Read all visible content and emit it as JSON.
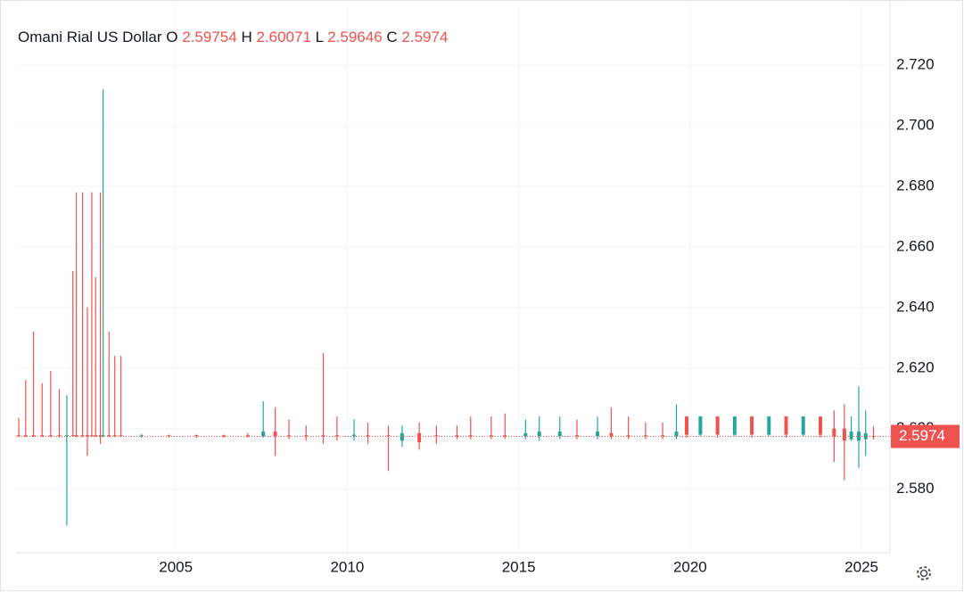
{
  "chart_data": {
    "type": "candlestick",
    "title": "Omani Rial US Dollar",
    "ohlc_labels": [
      "O",
      "H",
      "L",
      "C"
    ],
    "ohlc_values": [
      2.59754,
      2.60071,
      2.59646,
      2.5974
    ],
    "up_color": "#26a69a",
    "down_color": "#ef5350",
    "xlim": [
      2000.34,
      2025.83
    ],
    "xticks": [
      2005,
      2010,
      2015,
      2020,
      2025
    ],
    "ylim": [
      2.559,
      2.7415
    ],
    "yticks": [
      {
        "value": 2.58,
        "label": "2.580"
      },
      {
        "value": 2.6,
        "label": "2.600"
      },
      {
        "value": 2.62,
        "label": "2.620"
      },
      {
        "value": 2.64,
        "label": "2.640"
      },
      {
        "value": 2.66,
        "label": "2.660"
      },
      {
        "value": 2.68,
        "label": "2.680"
      },
      {
        "value": 2.7,
        "label": "2.700"
      },
      {
        "value": 2.72,
        "label": "2.720"
      }
    ],
    "grid": true,
    "x": [
      2000.42,
      2000.62,
      2000.85,
      2001.1,
      2001.35,
      2001.6,
      2001.82,
      2002.0,
      2002.1,
      2002.28,
      2002.42,
      2002.55,
      2002.66,
      2002.8,
      2002.88,
      2003.05,
      2003.22,
      2003.4,
      2004.0,
      2004.8,
      2005.6,
      2006.4,
      2007.1,
      2007.55,
      2007.9,
      2008.3,
      2008.8,
      2009.3,
      2009.7,
      2010.2,
      2010.6,
      2011.2,
      2011.6,
      2012.1,
      2012.6,
      2013.2,
      2013.6,
      2014.2,
      2014.6,
      2015.2,
      2015.6,
      2016.2,
      2016.7,
      2017.3,
      2017.7,
      2018.2,
      2018.7,
      2019.2,
      2019.6,
      2019.9,
      2020.3,
      2020.8,
      2021.3,
      2021.8,
      2022.3,
      2022.8,
      2023.3,
      2023.8,
      2024.2,
      2024.5,
      2024.7,
      2024.92,
      2025.12,
      2025.35
    ],
    "open": [
      2.5978,
      2.5978,
      2.5978,
      2.5978,
      2.5978,
      2.5978,
      2.5975,
      2.5978,
      2.5978,
      2.5978,
      2.5978,
      2.5978,
      2.5978,
      2.5978,
      2.5975,
      2.5978,
      2.5978,
      2.5978,
      2.5975,
      2.5978,
      2.5978,
      2.5978,
      2.5978,
      2.5975,
      2.599,
      2.5978,
      2.5978,
      2.5978,
      2.5978,
      2.5975,
      2.5978,
      2.5978,
      2.596,
      2.5985,
      2.5978,
      2.5978,
      2.5978,
      2.5978,
      2.5978,
      2.5975,
      2.5975,
      2.5975,
      2.5978,
      2.5975,
      2.5985,
      2.5978,
      2.5978,
      2.5978,
      2.5975,
      2.604,
      2.598,
      2.604,
      2.598,
      2.604,
      2.598,
      2.604,
      2.598,
      2.604,
      2.6,
      2.6,
      2.5965,
      2.596,
      2.5965,
      2.59754
    ],
    "high": [
      2.6035,
      2.616,
      2.632,
      2.615,
      2.619,
      2.613,
      2.611,
      2.652,
      2.678,
      2.678,
      2.64,
      2.678,
      2.65,
      2.678,
      2.712,
      2.632,
      2.624,
      2.624,
      2.5982,
      2.598,
      2.598,
      2.598,
      2.5985,
      2.609,
      2.607,
      2.603,
      2.601,
      2.625,
      2.604,
      2.603,
      2.602,
      2.601,
      2.601,
      2.602,
      2.601,
      2.601,
      2.604,
      2.604,
      2.605,
      2.603,
      2.604,
      2.604,
      2.603,
      2.604,
      2.607,
      2.604,
      2.602,
      2.602,
      2.608,
      2.604,
      2.604,
      2.604,
      2.604,
      2.604,
      2.604,
      2.604,
      2.604,
      2.604,
      2.606,
      2.608,
      2.604,
      2.614,
      2.606,
      2.60071
    ],
    "low": [
      2.5972,
      2.5972,
      2.5972,
      2.5972,
      2.5972,
      2.597,
      2.568,
      2.5972,
      2.5972,
      2.5972,
      2.591,
      2.5972,
      2.5972,
      2.595,
      2.5972,
      2.5972,
      2.5972,
      2.5972,
      2.597,
      2.597,
      2.597,
      2.597,
      2.597,
      2.597,
      2.591,
      2.5965,
      2.596,
      2.595,
      2.596,
      2.596,
      2.595,
      2.586,
      2.594,
      2.593,
      2.595,
      2.5965,
      2.5965,
      2.5965,
      2.5965,
      2.5965,
      2.596,
      2.5965,
      2.5965,
      2.5965,
      2.5965,
      2.5965,
      2.5965,
      2.5965,
      2.5965,
      2.597,
      2.5975,
      2.597,
      2.5975,
      2.597,
      2.5975,
      2.597,
      2.5975,
      2.597,
      2.589,
      2.583,
      2.596,
      2.587,
      2.591,
      2.59646
    ],
    "close": [
      2.5975,
      2.5975,
      2.5975,
      2.5975,
      2.5975,
      2.5975,
      2.5978,
      2.5975,
      2.5975,
      2.5975,
      2.5975,
      2.5975,
      2.5975,
      2.5975,
      2.5978,
      2.5975,
      2.5975,
      2.5975,
      2.5978,
      2.5975,
      2.5975,
      2.5975,
      2.5975,
      2.599,
      2.5975,
      2.5975,
      2.5975,
      2.5975,
      2.5975,
      2.598,
      2.5975,
      2.5975,
      2.5985,
      2.5955,
      2.5975,
      2.5975,
      2.5975,
      2.5975,
      2.5975,
      2.5985,
      2.599,
      2.599,
      2.5975,
      2.599,
      2.5975,
      2.5975,
      2.5975,
      2.5975,
      2.599,
      2.598,
      2.604,
      2.598,
      2.604,
      2.598,
      2.604,
      2.598,
      2.604,
      2.598,
      2.5975,
      2.596,
      2.599,
      2.599,
      2.5985,
      2.5974
    ]
  }
}
